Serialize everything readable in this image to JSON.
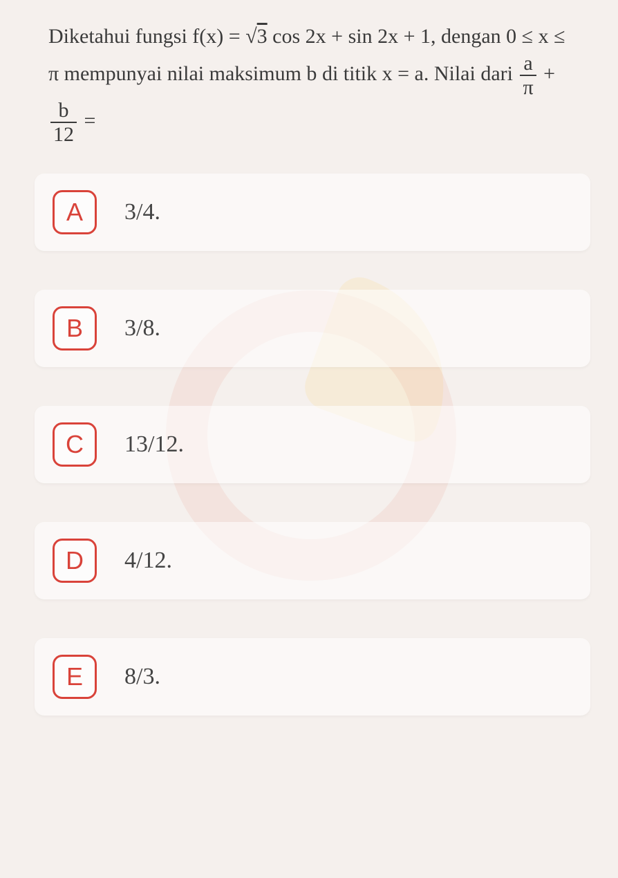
{
  "question": {
    "line1_a": "Diketahui fungsi f(x) = ",
    "line1_b": "cos 2x + sin 2x + 1,",
    "sqrt_val": "3",
    "line2": "dengan 0 ≤ x ≤ π mempunyai nilai maksimum b",
    "line3_a": "di titik x = a. Nilai dari ",
    "frac1_num": "a",
    "frac1_den": "π",
    "plus": " + ",
    "frac2_num": "b",
    "frac2_den": "12",
    "equals": " ="
  },
  "options": [
    {
      "letter": "A",
      "text": "3/4.",
      "color": "#d9433a"
    },
    {
      "letter": "B",
      "text": "3/8.",
      "color": "#d9433a"
    },
    {
      "letter": "C",
      "text": "13/12.",
      "color": "#d9433a"
    },
    {
      "letter": "D",
      "text": "4/12.",
      "color": "#d9433a"
    },
    {
      "letter": "E",
      "text": "8/3.",
      "color": "#d9433a"
    }
  ],
  "styles": {
    "body_bg": "#f5f0ed",
    "text_color": "#3a3a3a",
    "question_fontsize": 30,
    "option_fontsize": 34,
    "letter_fontsize": 36,
    "option_bg": "rgba(255,255,255,0.55)",
    "option_radius": 14,
    "letter_box_size": 64,
    "option_gap": 56
  }
}
